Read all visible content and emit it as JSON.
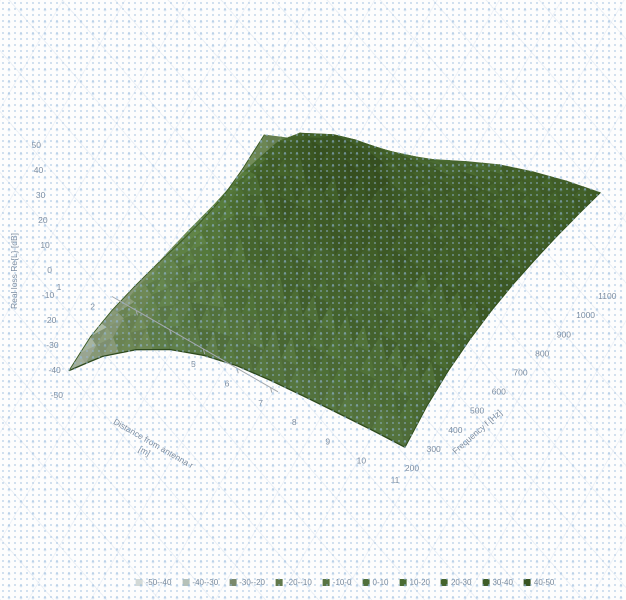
{
  "chart_data": {
    "type": "surface",
    "zlabel": "Real loss Re{L} [dB]",
    "xlabel_line1": "Distance from antenna r",
    "xlabel_line2": "[m]",
    "ylabel": "Frequency f [Hz]",
    "x_axis_name": "distance_m",
    "x_ticks": [
      1,
      2,
      3,
      4,
      5,
      6,
      7,
      8,
      9,
      10,
      11
    ],
    "y_axis_name": "frequency_Hz",
    "y_ticks": [
      200,
      300,
      400,
      500,
      600,
      700,
      800,
      900,
      1000,
      1100
    ],
    "z_ticks": [
      50,
      40,
      30,
      20,
      10,
      0,
      -10,
      -20,
      -30,
      -40,
      -50
    ],
    "zlim": [
      -50,
      50
    ],
    "grid_on": false,
    "legend_position": "bottom",
    "values_rows_are_distance": true,
    "values": [
      [
        -39.5,
        -33.5,
        -30.5,
        -29.0,
        -28.0,
        -27.5,
        -26.5,
        -24.5,
        -20.0,
        -14.0
      ],
      [
        -26.1,
        -18.5,
        -13.0,
        -9.0,
        -6.0,
        -5.0,
        -5.5,
        -7.0,
        -8.5,
        -8.0
      ],
      [
        -15.7,
        -6.5,
        1.5,
        8.5,
        14.0,
        17.5,
        16.0,
        11.0,
        4.5,
        -1.5
      ],
      [
        -7.9,
        3.0,
        13.2,
        22.9,
        31.3,
        37.1,
        32.8,
        23.9,
        13.9,
        4.5
      ],
      [
        -2.5,
        8.8,
        19.5,
        29.7,
        38.5,
        44.7,
        39.9,
        30.2,
        19.4,
        9.2
      ],
      [
        1.0,
        11.9,
        21.9,
        31.4,
        39.4,
        45.1,
        41.1,
        32.8,
        23.5,
        14.8
      ],
      [
        2.9,
        13.0,
        21.9,
        29.8,
        36.4,
        41.1,
        38.8,
        33.4,
        27.4,
        21.7
      ],
      [
        4.2,
        13.6,
        21.4,
        27.8,
        33.0,
        36.8,
        36.3,
        33.8,
        30.9,
        28.1
      ],
      [
        5.3,
        14.3,
        21.3,
        26.9,
        31.2,
        34.5,
        35.1,
        34.7,
        33.8,
        33.0
      ],
      [
        6.3,
        15.1,
        21.8,
        26.9,
        30.9,
        34.0,
        35.5,
        36.2,
        36.7,
        37.0
      ],
      [
        7.0,
        15.7,
        22.4,
        27.4,
        31.3,
        34.2,
        36.3,
        38.0,
        39.2,
        40.1
      ]
    ],
    "legend": {
      "labels": [
        "-50--40",
        "-40--30",
        "-30--20",
        "-20--10",
        "-10-0",
        "0-10",
        "10-20",
        "20-30",
        "30-40",
        "40-50"
      ],
      "colors": [
        "#d3d9d6",
        "#b6c1b8",
        "#79896c",
        "#62794b",
        "#587442",
        "#50703a",
        "#4a6b32",
        "#44642c",
        "#3e5c26",
        "#385421"
      ]
    },
    "surface_band_colors": [
      "#a9b3a7",
      "#97a38f",
      "#7a8a6b",
      "#667e4f",
      "#5b7946",
      "#54733d",
      "#4d6d35",
      "#46652e",
      "#405d27",
      "#3a5522"
    ],
    "accent_colors": {
      "axis_line": "#a3a8ad",
      "label_text": "#7b8ca0",
      "surface_edge_dark": "#2e4a1e"
    }
  }
}
